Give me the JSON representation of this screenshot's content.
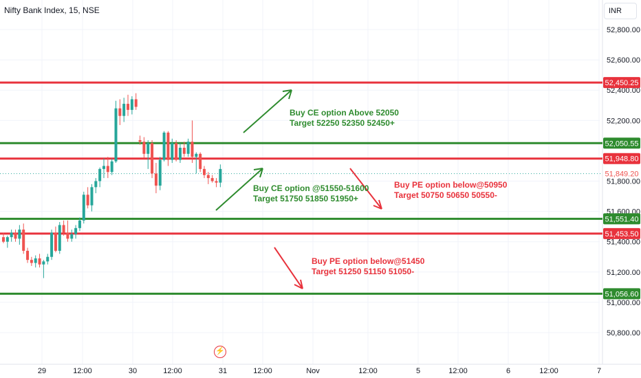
{
  "header": {
    "symbol_title": "Nifty Bank Index, 15, NSE",
    "currency": "INR"
  },
  "colors": {
    "up": "#26a69a",
    "down": "#ef5350",
    "green_line": "#2e8b2e",
    "red_line": "#e8323c",
    "grid": "#f0f3fa"
  },
  "annotations": [
    {
      "line1": "Buy CE option Above 52050",
      "line2": "Target 52250 52350 52450+",
      "color": "green"
    },
    {
      "line1": "Buy CE option @51550-51600",
      "line2": "Target 51750 51850 51950+",
      "color": "green"
    },
    {
      "line1": "Buy PE option below@50950",
      "line2": "Target 50750 50650 50550-",
      "color": "red"
    },
    {
      "line1": "Buy PE option below@51450",
      "line2": "Target 51250 51150 51050-",
      "color": "red"
    }
  ],
  "event_icon": "lightning-icon",
  "chart_data": {
    "type": "candlestick",
    "y_axis": {
      "range": [
        50700,
        52900
      ],
      "ticks": [
        "52,800.00",
        "52,600.00",
        "52,400.00",
        "52,200.00",
        "51,800.00",
        "51,600.00",
        "51,400.00",
        "51,200.00",
        "51,000.00",
        "50,800.00"
      ],
      "tick_values": [
        52800,
        52600,
        52400,
        52200,
        51800,
        51600,
        51400,
        51200,
        51000,
        50800
      ]
    },
    "x_axis": {
      "ticks": [
        "29",
        "12:00",
        "30",
        "12:00",
        "31",
        "12:00",
        "Nov",
        "12:00",
        "5",
        "12:00",
        "6",
        "12:00",
        "7"
      ]
    },
    "levels": [
      {
        "value": 52450.25,
        "label": "52,450.25",
        "color": "red"
      },
      {
        "value": 52050.55,
        "label": "52,050.55",
        "color": "green"
      },
      {
        "value": 51948.8,
        "label": "51,948.80",
        "color": "red"
      },
      {
        "value": 51551.4,
        "label": "51,551.40",
        "color": "green"
      },
      {
        "value": 51453.5,
        "label": "51,453.50",
        "color": "red"
      },
      {
        "value": 51056.6,
        "label": "51,056.60",
        "color": "green"
      }
    ],
    "last_price": {
      "value": 51849.2,
      "label": "51,849.20"
    },
    "candles": [
      [
        51430,
        51460,
        51390,
        51400
      ],
      [
        51400,
        51440,
        51360,
        51430
      ],
      [
        51430,
        51480,
        51400,
        51460
      ],
      [
        51460,
        51480,
        51400,
        51420
      ],
      [
        51420,
        51510,
        51380,
        51480
      ],
      [
        51480,
        51520,
        51320,
        51340
      ],
      [
        51340,
        51360,
        51260,
        51280
      ],
      [
        51280,
        51300,
        51240,
        51260
      ],
      [
        51260,
        51310,
        51230,
        51290
      ],
      [
        51290,
        51320,
        51230,
        51250
      ],
      [
        51250,
        51280,
        51160,
        51270
      ],
      [
        51270,
        51320,
        51250,
        51300
      ],
      [
        51300,
        51480,
        51280,
        51460
      ],
      [
        51460,
        51500,
        51330,
        51340
      ],
      [
        51340,
        51530,
        51320,
        51510
      ],
      [
        51510,
        51540,
        51440,
        51460
      ],
      [
        51460,
        51540,
        51400,
        51420
      ],
      [
        51420,
        51480,
        51400,
        51450
      ],
      [
        51450,
        51510,
        51420,
        51490
      ],
      [
        51490,
        51560,
        51470,
        51540
      ],
      [
        51540,
        51730,
        51520,
        51710
      ],
      [
        51710,
        51760,
        51620,
        51640
      ],
      [
        51640,
        51780,
        51600,
        51760
      ],
      [
        51760,
        51820,
        51720,
        51800
      ],
      [
        51800,
        51890,
        51760,
        51880
      ],
      [
        51880,
        51950,
        51820,
        51900
      ],
      [
        51900,
        51960,
        51820,
        51860
      ],
      [
        51860,
        51950,
        51840,
        51930
      ],
      [
        51930,
        52330,
        51920,
        52280
      ],
      [
        52280,
        52340,
        52170,
        52230
      ],
      [
        52230,
        52350,
        52190,
        52310
      ],
      [
        52310,
        52370,
        52230,
        52270
      ],
      [
        52270,
        52360,
        52240,
        52340
      ],
      [
        52340,
        52380,
        52270,
        52290
      ],
      [
        52070,
        52100,
        52040,
        52060
      ],
      [
        52060,
        52090,
        51950,
        51980
      ],
      [
        51980,
        52070,
        51880,
        52050
      ],
      [
        52050,
        52070,
        51820,
        51850
      ],
      [
        51850,
        51920,
        51720,
        51770
      ],
      [
        51770,
        51960,
        51740,
        51940
      ],
      [
        51940,
        52130,
        51930,
        52120
      ],
      [
        52120,
        52130,
        51900,
        51940
      ],
      [
        51940,
        52080,
        51920,
        52050
      ],
      [
        52050,
        52070,
        51930,
        51940
      ],
      [
        51940,
        52050,
        51920,
        52020
      ],
      [
        52020,
        52060,
        51960,
        51980
      ],
      [
        51980,
        52080,
        51960,
        52060
      ],
      [
        52060,
        52200,
        51920,
        51960
      ],
      [
        51960,
        51990,
        51850,
        51980
      ],
      [
        51980,
        51990,
        51860,
        51880
      ],
      [
        51880,
        51900,
        51820,
        51840
      ],
      [
        51840,
        51860,
        51780,
        51820
      ],
      [
        51820,
        51840,
        51790,
        51800
      ],
      [
        51800,
        51820,
        51760,
        51790
      ],
      [
        51790,
        51910,
        51760,
        51880
      ]
    ]
  }
}
